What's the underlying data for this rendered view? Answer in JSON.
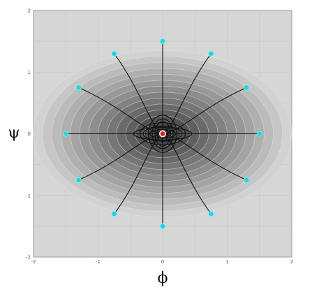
{
  "chart_data": {
    "type": "scatter",
    "xlabel": "ϕ",
    "ylabel": "ψ",
    "xlim": [
      -2,
      2
    ],
    "ylim": [
      -2,
      2
    ],
    "grid": true,
    "x_ticks": [
      -2,
      -1,
      0,
      1,
      2
    ],
    "y_ticks": [
      2,
      1,
      0,
      -1,
      -2
    ],
    "contour": {
      "shape": "ellipse",
      "center": [
        0,
        0
      ],
      "outer_semi_axes": [
        2.0,
        1.35
      ],
      "levels": 14
    },
    "start_points": [
      {
        "x": 0.0,
        "y": 1.5
      },
      {
        "x": 0.75,
        "y": 1.3
      },
      {
        "x": 1.3,
        "y": 0.75
      },
      {
        "x": 1.5,
        "y": 0.0
      },
      {
        "x": 1.3,
        "y": -0.75
      },
      {
        "x": 0.75,
        "y": -1.3
      },
      {
        "x": 0.0,
        "y": -1.5
      },
      {
        "x": -0.75,
        "y": -1.3
      },
      {
        "x": -1.3,
        "y": -0.75
      },
      {
        "x": -1.5,
        "y": 0.0
      },
      {
        "x": -1.3,
        "y": 0.75
      },
      {
        "x": -0.75,
        "y": 1.3
      }
    ],
    "minimum_point": {
      "x": 0.0,
      "y": 0.0
    },
    "colors": {
      "plot_background": "#d6d6d6",
      "grid": "#c8c8c8",
      "contour_outer": "#d2d2d2",
      "contour_inner": "#3c3c3c",
      "trajectory": "#111111",
      "start_marker": "#22d3e0",
      "minimum_marker": "#e81c1c"
    }
  }
}
